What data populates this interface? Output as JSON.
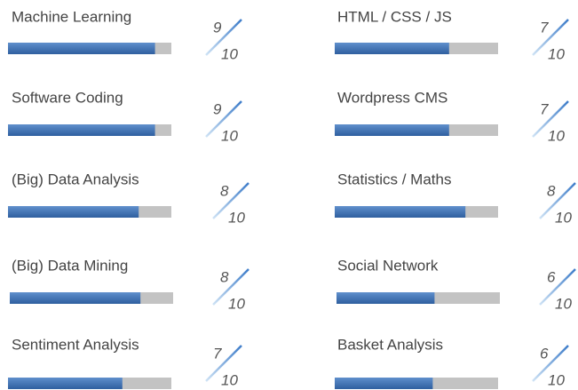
{
  "columns": [
    [
      {
        "name": "Machine Learning",
        "score": 9,
        "max": 10
      },
      {
        "name": "Software Coding",
        "score": 9,
        "max": 10
      },
      {
        "name": "(Big) Data Analysis",
        "score": 8,
        "max": 10
      },
      {
        "name": "(Big) Data Mining",
        "score": 8,
        "max": 10
      },
      {
        "name": "Sentiment Analysis",
        "score": 7,
        "max": 10
      }
    ],
    [
      {
        "name": "HTML / CSS / JS",
        "score": 7,
        "max": 10
      },
      {
        "name": "Wordpress CMS",
        "score": 7,
        "max": 10
      },
      {
        "name": "Statistics / Maths",
        "score": 8,
        "max": 10
      },
      {
        "name": "Social Network",
        "score": 6,
        "max": 10
      },
      {
        "name": "Basket Analysis",
        "score": 6,
        "max": 10
      }
    ]
  ]
}
